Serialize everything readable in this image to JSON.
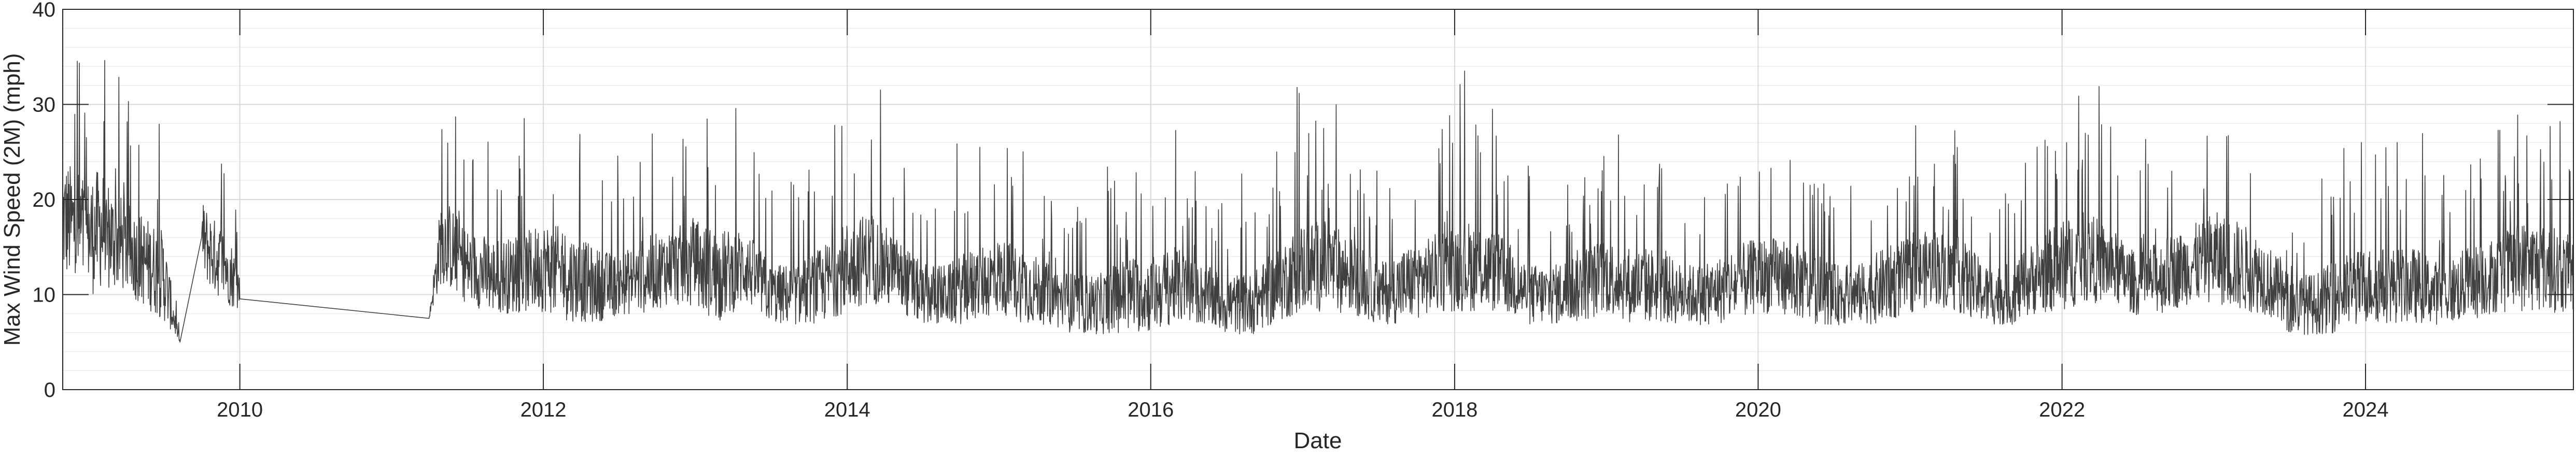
{
  "chart_data": {
    "type": "line",
    "title": "",
    "xlabel": "Date",
    "ylabel": "Max Wind Speed (2M) (mph)",
    "xlim": [
      "2008-11-01",
      "2025-05-15"
    ],
    "ylim": [
      0,
      40
    ],
    "xticks": [
      {
        "date": "2010-01-01",
        "label": "2010"
      },
      {
        "date": "2012-01-01",
        "label": "2012"
      },
      {
        "date": "2014-01-01",
        "label": "2014"
      },
      {
        "date": "2016-01-01",
        "label": "2016"
      },
      {
        "date": "2018-01-01",
        "label": "2018"
      },
      {
        "date": "2020-01-01",
        "label": "2020"
      },
      {
        "date": "2022-01-01",
        "label": "2022"
      },
      {
        "date": "2024-01-01",
        "label": "2024"
      }
    ],
    "yticks": [
      0,
      10,
      20,
      30,
      40
    ],
    "grid": true,
    "legend": "none",
    "series_color": "#404040",
    "series": [
      {
        "name": "",
        "x": [
          "2008-11-01",
          "2008-12-01",
          "2009-01-01",
          "2009-02-01",
          "2009-03-01",
          "2009-04-01",
          "2009-05-01",
          "2009-06-01",
          "2009-07-01",
          "2009-08-10",
          "2009-10-01",
          "2009-11-01",
          "2009-12-01",
          "2010-01-01",
          "2011-04-01",
          "2011-05-01",
          "2011-07-01",
          "2011-09-01",
          "2011-11-01",
          "2012-01-01",
          "2012-03-01",
          "2012-05-01",
          "2012-07-01",
          "2012-09-01",
          "2012-11-01",
          "2013-01-01",
          "2013-03-01",
          "2013-05-01",
          "2013-07-01",
          "2013-09-01",
          "2013-11-01",
          "2014-01-01",
          "2014-03-01",
          "2014-05-01",
          "2014-07-01",
          "2014-09-01",
          "2014-11-01",
          "2015-01-01",
          "2015-03-01",
          "2015-05-01",
          "2015-07-01",
          "2015-09-01",
          "2015-11-01",
          "2016-01-01",
          "2016-03-01",
          "2016-05-01",
          "2016-07-01",
          "2016-09-01",
          "2016-11-01",
          "2017-01-01",
          "2017-03-01",
          "2017-05-01",
          "2017-07-01",
          "2017-09-01",
          "2017-11-01",
          "2018-01-01",
          "2018-03-01",
          "2018-05-01",
          "2018-07-01",
          "2018-09-01",
          "2018-11-01",
          "2019-01-01",
          "2019-03-01",
          "2019-05-01",
          "2019-07-01",
          "2019-09-01",
          "2019-11-01",
          "2020-01-01",
          "2020-03-01",
          "2020-05-01",
          "2020-07-01",
          "2020-09-01",
          "2020-11-01",
          "2021-01-01",
          "2021-03-01",
          "2021-05-01",
          "2021-07-01",
          "2021-09-01",
          "2021-11-01",
          "2022-01-01",
          "2022-03-01",
          "2022-05-01",
          "2022-07-01",
          "2022-09-01",
          "2022-11-01",
          "2023-01-01",
          "2023-03-01",
          "2023-05-01",
          "2023-07-01",
          "2023-09-01",
          "2023-11-01",
          "2024-01-01",
          "2024-03-01",
          "2024-05-01",
          "2024-07-01",
          "2024-09-01",
          "2024-11-01",
          "2025-01-01",
          "2025-03-01",
          "2025-05-15"
        ],
        "y": [
          18,
          17,
          16,
          17,
          16,
          15,
          14,
          13,
          12,
          5,
          16,
          14,
          13,
          10.5,
          7.5,
          16,
          13,
          12,
          12,
          13,
          12,
          11,
          11,
          12,
          13,
          13,
          12,
          13,
          10,
          10,
          11,
          13,
          14,
          12,
          10,
          10,
          11,
          12,
          11,
          10,
          9,
          9,
          10,
          10,
          11,
          10,
          9,
          9,
          11,
          13,
          13,
          12,
          10,
          11,
          12,
          13,
          13,
          12,
          10,
          10,
          11,
          12,
          11,
          11,
          10,
          10,
          11,
          12,
          12,
          11,
          10,
          10,
          11,
          12,
          13,
          12,
          10,
          10,
          12,
          13,
          14,
          13,
          11,
          12,
          13,
          14,
          13,
          12,
          9,
          9,
          10,
          11,
          11,
          11,
          10,
          11,
          12,
          13,
          13,
          12
        ],
        "amplitude_envelope": [
          8,
          8,
          8,
          8,
          7,
          6,
          6,
          6,
          6,
          0,
          5,
          5,
          5,
          3,
          0,
          6,
          5,
          5,
          5,
          6,
          6,
          5,
          4,
          5,
          5,
          6,
          6,
          5,
          4,
          4,
          5,
          6,
          6,
          5,
          4,
          4,
          5,
          5,
          5,
          4,
          4,
          4,
          5,
          5,
          5,
          4,
          4,
          4,
          5,
          6,
          6,
          5,
          4,
          5,
          5,
          6,
          6,
          5,
          4,
          4,
          5,
          5,
          5,
          5,
          4,
          4,
          5,
          5,
          5,
          5,
          4,
          4,
          5,
          5,
          5,
          5,
          4,
          4,
          5,
          6,
          6,
          5,
          4,
          5,
          5,
          6,
          6,
          5,
          4,
          4,
          5,
          5,
          5,
          5,
          4,
          5,
          5,
          6,
          6,
          5
        ]
      }
    ]
  }
}
